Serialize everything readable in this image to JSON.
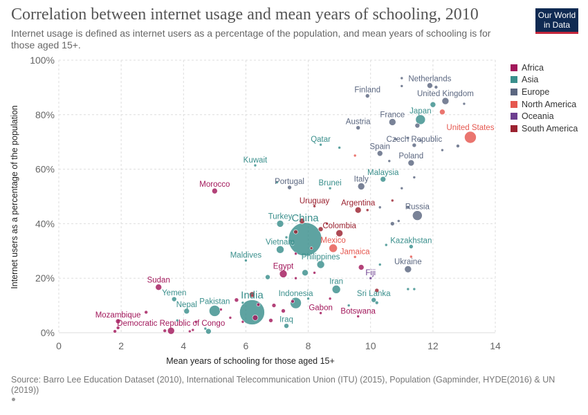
{
  "header": {
    "title": "Correlation between internet usage and mean years of schooling, 2010",
    "subtitle": "Internet usage is defined as internet users as a percentage of the population, and mean years of schooling is for those aged 15+.",
    "logo_line1": "Our World",
    "logo_line2": "in Data"
  },
  "footer": {
    "source": "Source: Barro Lee Education Dataset (2010), International Telecommunication Union (ITU) (2015), Population (Gapminder, HYDE(2016) & UN (2019))"
  },
  "colors": {
    "Africa": "#a2185b",
    "Asia": "#3a8f8c",
    "Europe": "#5b6780",
    "North America": "#e5574f",
    "Oceania": "#6d3f90",
    "South America": "#9b2230"
  },
  "chart_data": {
    "type": "scatter",
    "xlabel": "Mean years of schooling for those aged 15+",
    "ylabel": "Internet users as a percentage of the population",
    "xlim": [
      0,
      14
    ],
    "ylim": [
      0,
      100
    ],
    "xticks": [
      "0",
      "2",
      "4",
      "6",
      "8",
      "10",
      "12",
      "14"
    ],
    "yticks": [
      "0%",
      "20%",
      "40%",
      "60%",
      "80%",
      "100%"
    ],
    "grid": true,
    "legend_position": "right",
    "legend": [
      "Africa",
      "Asia",
      "Europe",
      "North America",
      "Oceania",
      "South America"
    ],
    "points": [
      {
        "label": "Netherlands",
        "x": 11.9,
        "y": 90.7,
        "region": "Europe",
        "size": 4
      },
      {
        "label": "Finland",
        "x": 9.9,
        "y": 86.9,
        "region": "Europe",
        "size": 3
      },
      {
        "label": "United Kingdom",
        "x": 12.4,
        "y": 85.0,
        "region": "Europe",
        "size": 5
      },
      {
        "label": "Japan",
        "x": 11.6,
        "y": 78.2,
        "region": "Asia",
        "size": 7
      },
      {
        "label": "France",
        "x": 10.7,
        "y": 77.3,
        "region": "Europe",
        "size": 5
      },
      {
        "label": "Austria",
        "x": 9.6,
        "y": 75.2,
        "region": "Europe",
        "size": 3
      },
      {
        "label": "United States",
        "x": 13.2,
        "y": 71.7,
        "region": "North America",
        "size": 8.5
      },
      {
        "label": "Qatar",
        "x": 8.4,
        "y": 69.0,
        "region": "Asia",
        "size": 2
      },
      {
        "label": "Czech Republic",
        "x": 11.4,
        "y": 68.8,
        "region": "Europe",
        "size": 3
      },
      {
        "label": "Spain",
        "x": 10.3,
        "y": 65.8,
        "region": "Europe",
        "size": 4
      },
      {
        "label": "Poland",
        "x": 11.3,
        "y": 62.3,
        "region": "Europe",
        "size": 4.5
      },
      {
        "label": "Kuwait",
        "x": 6.3,
        "y": 61.4,
        "region": "Asia",
        "size": 2
      },
      {
        "label": "Malaysia",
        "x": 10.4,
        "y": 56.3,
        "region": "Asia",
        "size": 4
      },
      {
        "label": "Portugal",
        "x": 7.4,
        "y": 53.3,
        "region": "Europe",
        "size": 3
      },
      {
        "label": "Brunei",
        "x": 8.7,
        "y": 53.0,
        "region": "Asia",
        "size": 2
      },
      {
        "label": "Italy",
        "x": 9.7,
        "y": 53.7,
        "region": "Europe",
        "size": 5
      },
      {
        "label": "Morocco",
        "x": 5.0,
        "y": 52.0,
        "region": "Africa",
        "size": 4
      },
      {
        "label": "Uruguay",
        "x": 8.2,
        "y": 46.4,
        "region": "South America",
        "size": 2
      },
      {
        "label": "Argentina",
        "x": 9.6,
        "y": 45.0,
        "region": "South America",
        "size": 4.5
      },
      {
        "label": "Russia",
        "x": 11.5,
        "y": 43.0,
        "region": "Europe",
        "size": 7
      },
      {
        "label": "Turkey",
        "x": 7.1,
        "y": 40.0,
        "region": "Asia",
        "size": 5
      },
      {
        "label": "China",
        "x": 7.9,
        "y": 34.3,
        "region": "Asia",
        "size": 24
      },
      {
        "label": "Colombia",
        "x": 9.0,
        "y": 36.5,
        "region": "South America",
        "size": 5
      },
      {
        "label": "Mexico",
        "x": 8.8,
        "y": 31.0,
        "region": "North America",
        "size": 6
      },
      {
        "label": "Vietnam",
        "x": 7.1,
        "y": 30.5,
        "region": "Asia",
        "size": 5.5
      },
      {
        "label": "Kazakhstan",
        "x": 11.3,
        "y": 31.6,
        "region": "Asia",
        "size": 3
      },
      {
        "label": "Jamaica",
        "x": 9.5,
        "y": 27.8,
        "region": "North America",
        "size": 2
      },
      {
        "label": "Maldives",
        "x": 6.0,
        "y": 26.5,
        "region": "Asia",
        "size": 2
      },
      {
        "label": "Philippines",
        "x": 8.4,
        "y": 25.0,
        "region": "Asia",
        "size": 5.5
      },
      {
        "label": "Ukraine",
        "x": 11.2,
        "y": 23.3,
        "region": "Europe",
        "size": 5
      },
      {
        "label": "Egypt",
        "x": 7.2,
        "y": 21.6,
        "region": "Africa",
        "size": 5.5
      },
      {
        "label": "Fiji",
        "x": 10.0,
        "y": 20.0,
        "region": "Oceania",
        "size": 2
      },
      {
        "label": "Sudan",
        "x": 3.2,
        "y": 16.7,
        "region": "Africa",
        "size": 4.5
      },
      {
        "label": "Iran",
        "x": 8.9,
        "y": 15.9,
        "region": "Asia",
        "size": 6
      },
      {
        "label": "Yemen",
        "x": 3.7,
        "y": 12.3,
        "region": "Asia",
        "size": 3.5
      },
      {
        "label": "India",
        "x": 6.2,
        "y": 7.5,
        "region": "Asia",
        "size": 18
      },
      {
        "label": "Indonesia",
        "x": 7.6,
        "y": 10.9,
        "region": "Asia",
        "size": 8
      },
      {
        "label": "Sri Lanka",
        "x": 10.1,
        "y": 12.0,
        "region": "Asia",
        "size": 3.5
      },
      {
        "label": "Nepal",
        "x": 4.1,
        "y": 7.9,
        "region": "Asia",
        "size": 4
      },
      {
        "label": "Pakistan",
        "x": 5.0,
        "y": 8.0,
        "region": "Asia",
        "size": 8
      },
      {
        "label": "Gabon",
        "x": 8.4,
        "y": 7.2,
        "region": "Africa",
        "size": 2
      },
      {
        "label": "Botswana",
        "x": 9.6,
        "y": 6.0,
        "region": "Africa",
        "size": 2
      },
      {
        "label": "Mozambique",
        "x": 1.9,
        "y": 4.2,
        "region": "Africa",
        "size": 3.5
      },
      {
        "label": "Iraq",
        "x": 7.3,
        "y": 2.5,
        "region": "Asia",
        "size": 3.5
      },
      {
        "label": "Democratic Republic of Congo",
        "x": 3.6,
        "y": 0.7,
        "region": "Africa",
        "size": 5
      },
      {
        "label": "",
        "x": 11.0,
        "y": 93.4,
        "region": "Europe",
        "size": 2
      },
      {
        "label": "",
        "x": 11.0,
        "y": 90.5,
        "region": "Europe",
        "size": 2
      },
      {
        "label": "",
        "x": 12.1,
        "y": 90.1,
        "region": "Europe",
        "size": 2.5
      },
      {
        "label": "",
        "x": 12.0,
        "y": 83.7,
        "region": "Asia",
        "size": 4
      },
      {
        "label": "",
        "x": 12.3,
        "y": 81.0,
        "region": "North America",
        "size": 4
      },
      {
        "label": "",
        "x": 13.0,
        "y": 84.0,
        "region": "Europe",
        "size": 2
      },
      {
        "label": "",
        "x": 11.5,
        "y": 76.0,
        "region": "Europe",
        "size": 3.5
      },
      {
        "label": "",
        "x": 10.8,
        "y": 71.0,
        "region": "Europe",
        "size": 2
      },
      {
        "label": "",
        "x": 11.6,
        "y": 70.5,
        "region": "Europe",
        "size": 2
      },
      {
        "label": "",
        "x": 12.3,
        "y": 67.0,
        "region": "Europe",
        "size": 2
      },
      {
        "label": "",
        "x": 12.8,
        "y": 68.5,
        "region": "Europe",
        "size": 2.5
      },
      {
        "label": "",
        "x": 11.2,
        "y": 71.5,
        "region": "Europe",
        "size": 2
      },
      {
        "label": "",
        "x": 9.0,
        "y": 67.9,
        "region": "Asia",
        "size": 2
      },
      {
        "label": "",
        "x": 9.5,
        "y": 65.0,
        "region": "North America",
        "size": 2
      },
      {
        "label": "",
        "x": 10.6,
        "y": 63.0,
        "region": "Europe",
        "size": 2
      },
      {
        "label": "",
        "x": 11.4,
        "y": 57.0,
        "region": "Europe",
        "size": 2
      },
      {
        "label": "",
        "x": 7.0,
        "y": 55.2,
        "region": "Asia",
        "size": 2
      },
      {
        "label": "",
        "x": 11.0,
        "y": 53.0,
        "region": "Europe",
        "size": 2
      },
      {
        "label": "",
        "x": 10.7,
        "y": 48.5,
        "region": "South America",
        "size": 2
      },
      {
        "label": "",
        "x": 10.3,
        "y": 46.0,
        "region": "Europe",
        "size": 2
      },
      {
        "label": "",
        "x": 11.2,
        "y": 46.0,
        "region": "Europe",
        "size": 2.5
      },
      {
        "label": "",
        "x": 9.9,
        "y": 45.0,
        "region": "South America",
        "size": 2
      },
      {
        "label": "",
        "x": 10.9,
        "y": 41.0,
        "region": "Europe",
        "size": 2
      },
      {
        "label": "",
        "x": 10.7,
        "y": 40.0,
        "region": "Europe",
        "size": 3
      },
      {
        "label": "",
        "x": 8.6,
        "y": 40.0,
        "region": "South America",
        "size": 2
      },
      {
        "label": "",
        "x": 7.6,
        "y": 37.0,
        "region": "South America",
        "size": 3
      },
      {
        "label": "",
        "x": 8.4,
        "y": 38.0,
        "region": "South America",
        "size": 3.5
      },
      {
        "label": "",
        "x": 7.5,
        "y": 32.5,
        "region": "Asia",
        "size": 2
      },
      {
        "label": "",
        "x": 7.3,
        "y": 35.0,
        "region": "Asia",
        "size": 2
      },
      {
        "label": "",
        "x": 7.8,
        "y": 41.0,
        "region": "South America",
        "size": 4
      },
      {
        "label": "",
        "x": 8.1,
        "y": 31.0,
        "region": "South America",
        "size": 2
      },
      {
        "label": "",
        "x": 7.6,
        "y": 29.0,
        "region": "Africa",
        "size": 2
      },
      {
        "label": "",
        "x": 10.5,
        "y": 32.2,
        "region": "Asia",
        "size": 2
      },
      {
        "label": "",
        "x": 9.7,
        "y": 24.0,
        "region": "Africa",
        "size": 4
      },
      {
        "label": "",
        "x": 10.3,
        "y": 25.0,
        "region": "Asia",
        "size": 2
      },
      {
        "label": "",
        "x": 11.3,
        "y": 27.9,
        "region": "North America",
        "size": 2
      },
      {
        "label": "",
        "x": 6.7,
        "y": 20.4,
        "region": "Asia",
        "size": 3.5
      },
      {
        "label": "",
        "x": 7.9,
        "y": 22.0,
        "region": "Asia",
        "size": 4.5
      },
      {
        "label": "",
        "x": 8.2,
        "y": 22.0,
        "region": "Africa",
        "size": 2
      },
      {
        "label": "",
        "x": 7.6,
        "y": 20.0,
        "region": "Africa",
        "size": 2
      },
      {
        "label": "",
        "x": 10.2,
        "y": 15.5,
        "region": "South America",
        "size": 3
      },
      {
        "label": "",
        "x": 11.4,
        "y": 16.0,
        "region": "Asia",
        "size": 2
      },
      {
        "label": "",
        "x": 11.2,
        "y": 16.0,
        "region": "Asia",
        "size": 2
      },
      {
        "label": "",
        "x": 6.2,
        "y": 14.0,
        "region": "South America",
        "size": 4
      },
      {
        "label": "",
        "x": 5.7,
        "y": 12.0,
        "region": "Africa",
        "size": 3
      },
      {
        "label": "",
        "x": 5.9,
        "y": 11.0,
        "region": "Asia",
        "size": 2
      },
      {
        "label": "",
        "x": 6.4,
        "y": 10.3,
        "region": "Africa",
        "size": 2.5
      },
      {
        "label": "",
        "x": 6.9,
        "y": 10.0,
        "region": "Africa",
        "size": 3
      },
      {
        "label": "",
        "x": 7.5,
        "y": 11.5,
        "region": "Africa",
        "size": 2.5
      },
      {
        "label": "",
        "x": 8.0,
        "y": 12.5,
        "region": "Asia",
        "size": 2
      },
      {
        "label": "",
        "x": 8.7,
        "y": 12.5,
        "region": "Africa",
        "size": 2
      },
      {
        "label": "",
        "x": 9.3,
        "y": 10.0,
        "region": "Asia",
        "size": 2
      },
      {
        "label": "",
        "x": 10.2,
        "y": 11.0,
        "region": "Asia",
        "size": 2.5
      },
      {
        "label": "",
        "x": 6.3,
        "y": 5.5,
        "region": "Africa",
        "size": 4
      },
      {
        "label": "",
        "x": 6.8,
        "y": 4.5,
        "region": "Africa",
        "size": 3
      },
      {
        "label": "",
        "x": 7.2,
        "y": 8.0,
        "region": "Africa",
        "size": 3
      },
      {
        "label": "",
        "x": 5.5,
        "y": 5.5,
        "region": "Africa",
        "size": 2
      },
      {
        "label": "",
        "x": 5.2,
        "y": 8.5,
        "region": "Africa",
        "size": 2
      },
      {
        "label": "",
        "x": 4.4,
        "y": 4.0,
        "region": "Africa",
        "size": 2
      },
      {
        "label": "",
        "x": 4.7,
        "y": 1.5,
        "region": "Asia",
        "size": 2
      },
      {
        "label": "",
        "x": 4.8,
        "y": 0.5,
        "region": "Asia",
        "size": 4
      },
      {
        "label": "",
        "x": 4.3,
        "y": 1.0,
        "region": "Africa",
        "size": 2
      },
      {
        "label": "",
        "x": 4.2,
        "y": 0.5,
        "region": "Africa",
        "size": 2
      },
      {
        "label": "",
        "x": 3.4,
        "y": 0.7,
        "region": "Africa",
        "size": 2.5
      },
      {
        "label": "",
        "x": 2.8,
        "y": 7.5,
        "region": "Africa",
        "size": 2.5
      },
      {
        "label": "",
        "x": 1.9,
        "y": 1.8,
        "region": "Africa",
        "size": 2.5
      },
      {
        "label": "",
        "x": 1.8,
        "y": 0.5,
        "region": "Africa",
        "size": 2.5
      },
      {
        "label": "",
        "x": 3.8,
        "y": 4.5,
        "region": "Asia",
        "size": 2
      },
      {
        "label": "",
        "x": 5.9,
        "y": 4.0,
        "region": "Africa",
        "size": 2
      }
    ]
  }
}
